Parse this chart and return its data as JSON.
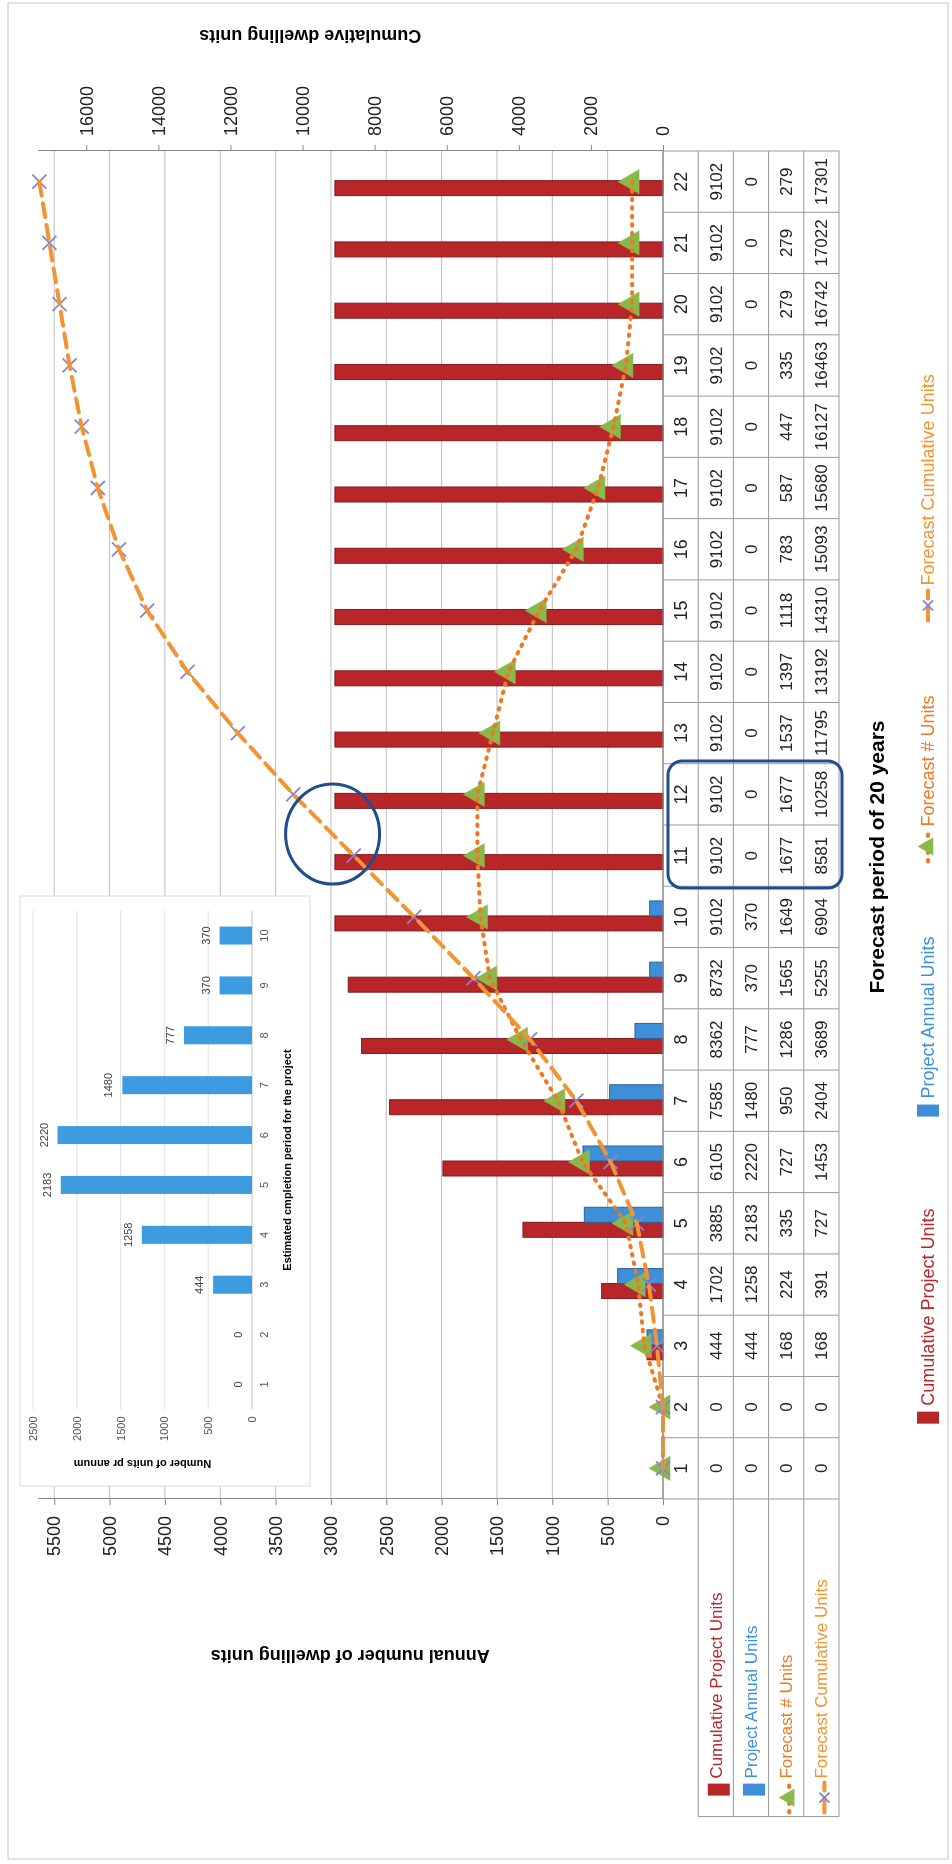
{
  "chart_data": [
    {
      "type": "bar",
      "orientation": "horizontal",
      "xlabel": "Annual number of dwelling units",
      "x2label": "Cumulative dwelling units",
      "ylabel": "Forecast period of 20 years",
      "categories": [
        "22",
        "21",
        "20",
        "19",
        "18",
        "17",
        "16",
        "15",
        "14",
        "13",
        "12",
        "11",
        "10",
        "9",
        "8",
        "7",
        "6",
        "5",
        "4",
        "3",
        "2",
        "1"
      ],
      "series": [
        {
          "name": "Cumulative Project Units",
          "axis": "x2",
          "color": "#b8262a",
          "values": [
            9102,
            9102,
            9102,
            9102,
            9102,
            9102,
            9102,
            9102,
            9102,
            9102,
            9102,
            9102,
            9102,
            8732,
            8362,
            7585,
            6105,
            3885,
            1702,
            444,
            0,
            0
          ]
        },
        {
          "name": "Project Annual Units",
          "axis": "x2",
          "color": "#3f8fd8",
          "values": [
            0,
            0,
            0,
            0,
            0,
            0,
            0,
            0,
            0,
            0,
            0,
            0,
            370,
            370,
            777,
            1480,
            2220,
            2183,
            1258,
            444,
            0,
            0
          ]
        },
        {
          "name": "Forecast # Units",
          "type": "line",
          "color": "#f07822",
          "marker": "triangle",
          "line_style": "dotted",
          "colors": [
            "#8ab84a",
            "#8ab84a",
            "#8ab84a",
            "#8ab84a",
            "#8ab84a",
            "#8ab84a",
            "#8ab84a",
            "#8ab84a",
            "#8ab84a",
            "#8ab84a",
            "#8ab84a",
            "#8ab84a",
            "#8ab84a",
            "#8ab84a",
            "#8ab84a",
            "#8ab84a",
            "#8ab84a",
            "#8ab84a",
            "#8ab84a",
            "#8ab84a",
            "#8ab84a",
            "#8ab84a"
          ],
          "values": [
            279,
            279,
            279,
            335,
            447,
            587,
            783,
            1118,
            1397,
            1537,
            1677,
            1677,
            1649,
            1565,
            1286,
            950,
            727,
            335,
            224,
            168,
            0,
            0
          ]
        },
        {
          "name": "Forecast Cumulative Units",
          "type": "line",
          "axis": "x2",
          "color": "#f39433",
          "marker": "cross",
          "line_style": "dashed",
          "colors": [
            "#8484d4",
            "#8484d4",
            "#8484d4",
            "#8484d4",
            "#8484d4",
            "#8484d4",
            "#8484d4",
            "#8484d4",
            "#8484d4",
            "#8484d4",
            "#8484d4",
            "#8484d4",
            "#8484d4",
            "#8484d4",
            "#8484d4",
            "#8484d4",
            "#8484d4",
            "#8484d4",
            "#8484d4",
            "#8484d4",
            "#8484d4",
            "#8484d4"
          ],
          "values": [
            17301,
            17022,
            16742,
            16463,
            16127,
            15680,
            15093,
            14310,
            13192,
            11795,
            10258,
            8581,
            6904,
            5255,
            3689,
            2404,
            1453,
            727,
            391,
            168,
            0,
            0
          ]
        }
      ],
      "xlim": [
        5650,
        0
      ],
      "xticks": [
        5500,
        5000,
        4500,
        4000,
        3500,
        3000,
        2500,
        2000,
        1500,
        1000,
        500,
        0
      ],
      "x2lim": [
        17350,
        0
      ],
      "x2ticks": [
        16000,
        14000,
        12000,
        10000,
        8000,
        6000,
        4000,
        2000,
        0
      ],
      "grid": "x",
      "legend": "right",
      "data_labels": true
    },
    {
      "type": "bar",
      "orientation": "horizontal",
      "xlabel": "Number of units pr annum",
      "ylabel": "Estimated cmpletion period for the project",
      "categories": [
        "10",
        "9",
        "8",
        "7",
        "6",
        "5",
        "4",
        "3",
        "2",
        "1"
      ],
      "values": [
        370,
        370,
        777,
        1480,
        2220,
        2183,
        1258,
        444,
        0,
        0
      ],
      "color": "#3d9be0",
      "xlim": [
        2500,
        0
      ],
      "xticks": [
        2500,
        2000,
        1500,
        1000,
        500,
        0
      ],
      "grid": "x",
      "data_labels": true
    }
  ]
}
